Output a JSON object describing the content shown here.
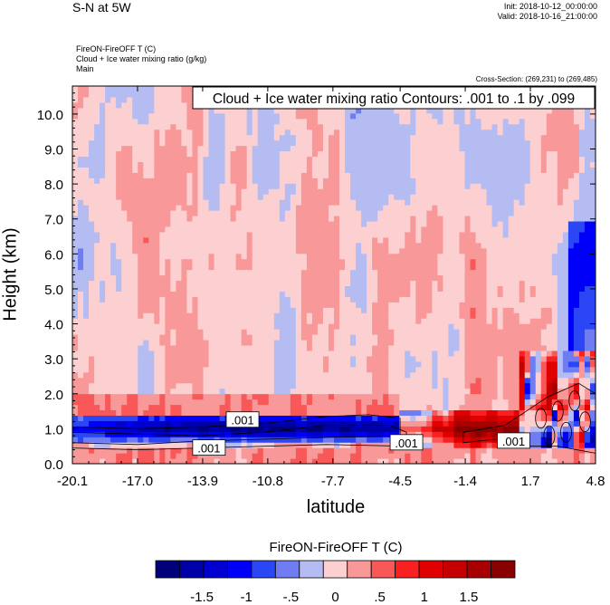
{
  "header": {
    "title": "S-N at 5W",
    "init": "Init: 2018-10-12_00:00:00",
    "valid": "Valid: 2018-10-16_21:00:00",
    "subtitle_lines": [
      "FireON-FireOFF T   (C)",
      "Cloud + Ice water mixing ratio   (g/kg)",
      "Main"
    ],
    "cross_section": "Cross-Section: (269,231) to (269,485)"
  },
  "chart_data": {
    "type": "heatmap",
    "contour_legend": "Cloud + Ice water mixing ratio Contours: .001 to .1 by .099",
    "contour_labels": [
      ".001",
      ".001",
      ".001",
      ".001"
    ],
    "xlabel": "latitude",
    "ylabel": "Height (km)",
    "xlim": [
      -20.1,
      4.8
    ],
    "ylim": [
      0.0,
      10.8
    ],
    "x_ticks": [
      -20.1,
      -17.0,
      -13.9,
      -10.8,
      -7.7,
      -4.5,
      -1.4,
      1.7,
      4.8
    ],
    "x_tick_labels": [
      "-20.1",
      "-17.0",
      "-13.9",
      "-10.8",
      "-7.7",
      "-4.5",
      "-1.4",
      "1.7",
      "4.8"
    ],
    "y_ticks": [
      0,
      1,
      2,
      3,
      4,
      5,
      6,
      7,
      8,
      9,
      10
    ],
    "y_tick_labels": [
      "0.0",
      "1.0",
      "2.0",
      "3.0",
      "4.0",
      "5.0",
      "6.0",
      "7.0",
      "8.0",
      "9.0",
      "10.0"
    ],
    "colorbar": {
      "title": "FireON-FireOFF T  (C)",
      "levels": [
        -1.75,
        -1.5,
        -1.25,
        -1.0,
        -0.75,
        -0.5,
        -0.25,
        0,
        0.25,
        0.5,
        0.75,
        1.0,
        1.25,
        1.5,
        1.75
      ],
      "tick_labels": [
        "-1.5",
        "-1",
        "-.5",
        "0",
        ".5",
        "1",
        "1.5"
      ],
      "tick_values": [
        -1.5,
        -1.0,
        -0.5,
        0,
        0.5,
        1.0,
        1.5
      ],
      "colors": [
        "#00007a",
        "#0000a8",
        "#0000d0",
        "#0000f8",
        "#2a46f5",
        "#6f7cf2",
        "#b4bcf2",
        "#fcd0d0",
        "#f89898",
        "#f85858",
        "#f82020",
        "#e00000",
        "#c40000",
        "#a80000",
        "#880000"
      ]
    },
    "bands": [
      {
        "x_from": -20.1,
        "x_to": 4.8,
        "y_from": 2.0,
        "y_to": 10.8,
        "value": 0.15,
        "note": "mixed light positive/negative"
      },
      {
        "x_from": -20.1,
        "x_to": -4.5,
        "y_from": 1.3,
        "y_to": 2.0,
        "value": 0.4
      },
      {
        "x_from": -20.1,
        "x_to": -4.5,
        "y_from": 0.7,
        "y_to": 1.4,
        "value": -1.2
      },
      {
        "x_from": -4.5,
        "x_to": 1.7,
        "y_from": 0.6,
        "y_to": 1.4,
        "value": 0.9
      },
      {
        "x_from": 1.7,
        "x_to": 4.8,
        "y_from": 0.5,
        "y_to": 2.5,
        "value": -0.8
      }
    ]
  }
}
